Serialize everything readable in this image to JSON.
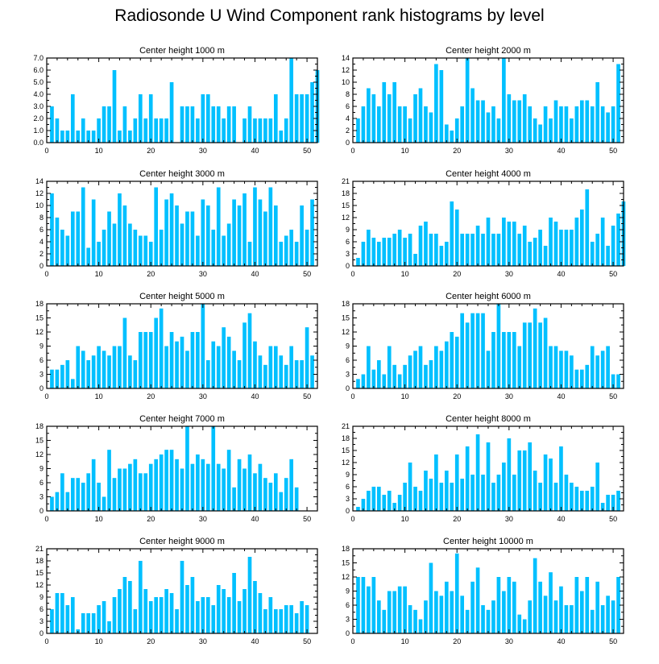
{
  "title": "Radiosonde U Wind Component rank histograms by level",
  "colors": {
    "bar": "#00C0FF",
    "axis": "#000000"
  },
  "chart_data": [
    {
      "type": "bar",
      "title": "Center height 1000 m",
      "x_start": 1,
      "xlim": [
        0,
        52
      ],
      "xticks": [
        0,
        10,
        20,
        30,
        40,
        50
      ],
      "ylim": [
        0,
        7
      ],
      "yticks": [
        "0.0",
        "1.0",
        "2.0",
        "3.0",
        "4.0",
        "5.0",
        "6.0",
        "7.0"
      ],
      "values": [
        3,
        2,
        1,
        1,
        4,
        1,
        2,
        1,
        1,
        2,
        3,
        3,
        6,
        1,
        3,
        1,
        2,
        4,
        2,
        4,
        2,
        2,
        2,
        5,
        0,
        3,
        3,
        3,
        2,
        4,
        4,
        3,
        3,
        2,
        3,
        3,
        0,
        2,
        3,
        2,
        2,
        2,
        2,
        4,
        1,
        2,
        7,
        4,
        4,
        4,
        5,
        6
      ]
    },
    {
      "type": "bar",
      "title": "Center height 2000 m",
      "x_start": 1,
      "xlim": [
        0,
        52
      ],
      "xticks": [
        0,
        10,
        20,
        30,
        40,
        50
      ],
      "ylim": [
        0,
        14
      ],
      "yticks": [
        "0",
        "2",
        "4",
        "6",
        "8",
        "10",
        "12",
        "14"
      ],
      "values": [
        4,
        6,
        9,
        8,
        6,
        10,
        8,
        10,
        6,
        6,
        4,
        8,
        9,
        6,
        5,
        13,
        12,
        3,
        2,
        4,
        6,
        14,
        9,
        7,
        7,
        5,
        6,
        4,
        14,
        8,
        7,
        7,
        8,
        6,
        4,
        3,
        6,
        4,
        7,
        6,
        6,
        4,
        6,
        7,
        7,
        6,
        10,
        6,
        5,
        6,
        13
      ]
    },
    {
      "type": "bar",
      "title": "Center height 3000 m",
      "x_start": 1,
      "xlim": [
        0,
        52
      ],
      "xticks": [
        0,
        10,
        20,
        30,
        40,
        50
      ],
      "ylim": [
        0,
        14
      ],
      "yticks": [
        "0",
        "2",
        "4",
        "6",
        "8",
        "10",
        "12",
        "14"
      ],
      "values": [
        12,
        8,
        6,
        5,
        9,
        9,
        13,
        3,
        11,
        4,
        6,
        9,
        7,
        12,
        10,
        7,
        6,
        5,
        5,
        4,
        13,
        6,
        11,
        12,
        10,
        7,
        9,
        9,
        5,
        11,
        10,
        6,
        13,
        5,
        7,
        11,
        10,
        12,
        4,
        13,
        11,
        9,
        13,
        10,
        4,
        5,
        6,
        4,
        10,
        6,
        11
      ]
    },
    {
      "type": "bar",
      "title": "Center height 4000 m",
      "x_start": 1,
      "xlim": [
        0,
        52
      ],
      "xticks": [
        0,
        10,
        20,
        30,
        40,
        50
      ],
      "ylim": [
        0,
        21
      ],
      "yticks": [
        "0",
        "3",
        "6",
        "9",
        "12",
        "15",
        "18",
        "21"
      ],
      "values": [
        2,
        6,
        9,
        7,
        6,
        7,
        7,
        8,
        9,
        7,
        8,
        3,
        10,
        11,
        8,
        8,
        5,
        6,
        16,
        14,
        8,
        8,
        8,
        10,
        8,
        12,
        8,
        8,
        12,
        11,
        11,
        8,
        10,
        6,
        7,
        9,
        5,
        12,
        11,
        9,
        9,
        9,
        12,
        14,
        19,
        6,
        8,
        12,
        5,
        10,
        13,
        16
      ]
    },
    {
      "type": "bar",
      "title": "Center height 5000 m",
      "x_start": 1,
      "xlim": [
        0,
        52
      ],
      "xticks": [
        0,
        10,
        20,
        30,
        40,
        50
      ],
      "ylim": [
        0,
        18
      ],
      "yticks": [
        "0",
        "3",
        "6",
        "9",
        "12",
        "15",
        "18"
      ],
      "values": [
        4,
        4,
        5,
        6,
        2,
        9,
        8,
        6,
        7,
        9,
        8,
        7,
        9,
        9,
        15,
        7,
        6,
        12,
        12,
        12,
        15,
        17,
        9,
        12,
        10,
        11,
        8,
        12,
        12,
        18,
        6,
        10,
        9,
        13,
        11,
        8,
        6,
        14,
        16,
        10,
        7,
        5,
        9,
        9,
        7,
        5,
        9,
        6,
        6,
        13,
        7
      ]
    },
    {
      "type": "bar",
      "title": "Center height 6000 m",
      "x_start": 1,
      "xlim": [
        0,
        52
      ],
      "xticks": [
        0,
        10,
        20,
        30,
        40,
        50
      ],
      "ylim": [
        0,
        18
      ],
      "yticks": [
        "0",
        "3",
        "6",
        "9",
        "12",
        "15",
        "18"
      ],
      "values": [
        2,
        3,
        9,
        4,
        6,
        3,
        9,
        5,
        3,
        5,
        7,
        8,
        9,
        5,
        6,
        9,
        8,
        10,
        12,
        11,
        16,
        14,
        16,
        16,
        16,
        8,
        12,
        18,
        12,
        12,
        12,
        9,
        14,
        14,
        17,
        14,
        15,
        9,
        9,
        8,
        8,
        7,
        4,
        4,
        5,
        9,
        7,
        8,
        9,
        3,
        3
      ]
    },
    {
      "type": "bar",
      "title": "Center height 7000 m",
      "x_start": 1,
      "xlim": [
        0,
        52
      ],
      "xticks": [
        0,
        10,
        20,
        30,
        40,
        50
      ],
      "ylim": [
        0,
        18
      ],
      "yticks": [
        "0",
        "3",
        "6",
        "9",
        "12",
        "15",
        "18"
      ],
      "values": [
        3,
        4,
        8,
        4,
        7,
        7,
        6,
        8,
        11,
        6,
        3,
        13,
        7,
        9,
        9,
        10,
        11,
        8,
        8,
        10,
        11,
        12,
        13,
        13,
        11,
        9,
        18,
        10,
        12,
        11,
        10,
        18,
        10,
        9,
        13,
        5,
        11,
        9,
        12,
        8,
        10,
        7,
        6,
        8,
        4,
        7,
        11,
        5
      ]
    },
    {
      "type": "bar",
      "title": "Center height 8000 m",
      "x_start": 1,
      "xlim": [
        0,
        52
      ],
      "xticks": [
        0,
        10,
        20,
        30,
        40,
        50
      ],
      "ylim": [
        0,
        21
      ],
      "yticks": [
        "0",
        "3",
        "6",
        "9",
        "12",
        "15",
        "18",
        "21"
      ],
      "values": [
        1,
        3,
        5,
        6,
        6,
        4,
        5,
        2,
        4,
        7,
        12,
        6,
        5,
        10,
        8,
        14,
        7,
        10,
        7,
        14,
        8,
        16,
        9,
        19,
        9,
        17,
        7,
        9,
        12,
        18,
        9,
        15,
        15,
        17,
        10,
        7,
        14,
        13,
        7,
        16,
        9,
        7,
        6,
        5,
        5,
        6,
        12,
        2,
        4,
        4,
        5
      ]
    },
    {
      "type": "bar",
      "title": "Center height 9000 m",
      "x_start": 1,
      "xlim": [
        0,
        52
      ],
      "xticks": [
        0,
        10,
        20,
        30,
        40,
        50
      ],
      "ylim": [
        0,
        21
      ],
      "yticks": [
        "0",
        "3",
        "6",
        "9",
        "12",
        "15",
        "18",
        "21"
      ],
      "values": [
        6,
        10,
        10,
        7,
        9,
        1,
        5,
        5,
        5,
        7,
        8,
        3,
        9,
        11,
        14,
        13,
        6,
        18,
        11,
        8,
        9,
        9,
        11,
        10,
        6,
        18,
        12,
        14,
        8,
        9,
        9,
        7,
        12,
        11,
        9,
        15,
        8,
        11,
        19,
        13,
        10,
        6,
        9,
        6,
        6,
        7,
        7,
        5,
        8,
        7
      ]
    },
    {
      "type": "bar",
      "title": "Center height 10000 m",
      "x_start": 1,
      "xlim": [
        0,
        52
      ],
      "xticks": [
        0,
        10,
        20,
        30,
        40,
        50
      ],
      "ylim": [
        0,
        18
      ],
      "yticks": [
        "0",
        "3",
        "6",
        "9",
        "12",
        "15",
        "18"
      ],
      "values": [
        12,
        12,
        10,
        12,
        7,
        5,
        9,
        9,
        10,
        10,
        6,
        5,
        3,
        7,
        15,
        9,
        8,
        11,
        9,
        17,
        8,
        5,
        11,
        14,
        6,
        5,
        7,
        12,
        9,
        12,
        11,
        4,
        3,
        7,
        16,
        11,
        8,
        13,
        7,
        10,
        6,
        6,
        12,
        9,
        12,
        5,
        11,
        6,
        8,
        7,
        12
      ]
    }
  ]
}
